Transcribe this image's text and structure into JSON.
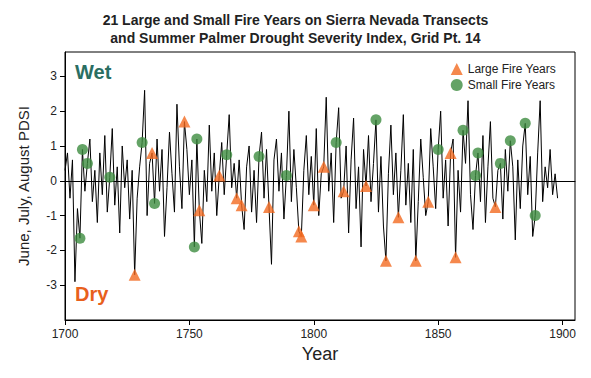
{
  "chart_data": {
    "type": "line",
    "title": "21 Large and Small Fire Years on Sierra Nevada Transects\nand Summer Palmer Drought Severity Index, Grid Pt. 14",
    "x_label": "Year",
    "y_label": "June, July, August PDSI",
    "color": "#000000",
    "x": [
      1700,
      1701,
      1702,
      1703,
      1704,
      1705,
      1706,
      1707,
      1708,
      1709,
      1710,
      1711,
      1712,
      1713,
      1714,
      1715,
      1716,
      1717,
      1718,
      1719,
      1720,
      1721,
      1722,
      1723,
      1724,
      1725,
      1726,
      1727,
      1728,
      1729,
      1730,
      1731,
      1732,
      1733,
      1734,
      1735,
      1736,
      1737,
      1738,
      1739,
      1740,
      1741,
      1742,
      1743,
      1744,
      1745,
      1746,
      1747,
      1748,
      1749,
      1750,
      1751,
      1752,
      1753,
      1754,
      1755,
      1756,
      1757,
      1758,
      1759,
      1760,
      1761,
      1762,
      1763,
      1764,
      1765,
      1766,
      1767,
      1768,
      1769,
      1770,
      1771,
      1772,
      1773,
      1774,
      1775,
      1776,
      1777,
      1778,
      1779,
      1780,
      1781,
      1782,
      1783,
      1784,
      1785,
      1786,
      1787,
      1788,
      1789,
      1790,
      1791,
      1792,
      1793,
      1794,
      1795,
      1796,
      1797,
      1798,
      1799,
      1800,
      1801,
      1802,
      1803,
      1804,
      1805,
      1806,
      1807,
      1808,
      1809,
      1810,
      1811,
      1812,
      1813,
      1814,
      1815,
      1816,
      1817,
      1818,
      1819,
      1820,
      1821,
      1822,
      1823,
      1824,
      1825,
      1826,
      1827,
      1828,
      1829,
      1830,
      1831,
      1832,
      1833,
      1834,
      1835,
      1836,
      1837,
      1838,
      1839,
      1840,
      1841,
      1842,
      1843,
      1844,
      1845,
      1846,
      1847,
      1848,
      1849,
      1850,
      1851,
      1852,
      1853,
      1854,
      1855,
      1856,
      1857,
      1858,
      1859,
      1860,
      1861,
      1862,
      1863,
      1864,
      1865,
      1866,
      1867,
      1868,
      1869,
      1870,
      1871,
      1872,
      1873,
      1874,
      1875,
      1876,
      1877,
      1878,
      1879,
      1880,
      1881,
      1882,
      1883,
      1884,
      1885,
      1886,
      1887,
      1888,
      1889,
      1890,
      1891,
      1892,
      1893,
      1894,
      1895,
      1896,
      1897,
      1898
    ],
    "values": [
      0.3,
      0.8,
      -0.5,
      0.6,
      -2.9,
      -0.8,
      -1.65,
      0.9,
      -0.3,
      0.5,
      1.2,
      -0.6,
      0.3,
      -1.2,
      0.8,
      -0.4,
      1.3,
      -0.9,
      0.1,
      1.5,
      -0.7,
      0.4,
      -1.5,
      1.0,
      -0.2,
      0.6,
      -1.1,
      0.3,
      -2.7,
      -0.5,
      0.4,
      1.1,
      2.6,
      -1.0,
      0.5,
      0.8,
      -0.65,
      1.2,
      -0.3,
      0.9,
      -1.6,
      -0.2,
      1.4,
      0.2,
      -0.9,
      2.2,
      0.4,
      -0.8,
      1.7,
      0.9,
      -0.4,
      0.6,
      -1.9,
      1.2,
      -0.85,
      -1.8,
      0.3,
      -0.6,
      1.6,
      -0.3,
      0.8,
      -1.0,
      0.15,
      1.1,
      -0.4,
      0.75,
      1.9,
      -0.2,
      0.5,
      -0.5,
      0.6,
      -0.7,
      -1.4,
      0.4,
      1.0,
      -0.9,
      0.3,
      -1.2,
      0.7,
      1.4,
      -0.5,
      0.9,
      -0.75,
      -2.4,
      0.6,
      1.2,
      -0.3,
      0.8,
      -1.1,
      0.15,
      2.0,
      -0.6,
      0.9,
      -0.2,
      -1.45,
      -1.6,
      0.3,
      1.3,
      -0.4,
      0.7,
      -0.7,
      1.5,
      -1.0,
      0.2,
      0.4,
      2.4,
      -0.3,
      0.8,
      -1.2,
      1.1,
      2.1,
      -0.5,
      -0.3,
      1.0,
      -1.5,
      0.6,
      1.8,
      -0.8,
      0.4,
      -1.9,
      0.9,
      -0.15,
      1.3,
      -0.6,
      0.5,
      1.75,
      -0.9,
      0.7,
      -1.3,
      -2.3,
      0.2,
      1.6,
      -0.4,
      0.8,
      -1.05,
      0.3,
      1.9,
      -0.7,
      0.5,
      -1.2,
      0.9,
      -2.3,
      -0.6,
      1.2,
      0.1,
      -1.0,
      -0.6,
      1.5,
      0.4,
      -0.8,
      0.9,
      2.0,
      -0.5,
      0.6,
      -1.3,
      0.8,
      1.2,
      -2.2,
      0.3,
      -0.9,
      1.45,
      0.5,
      2.3,
      -0.4,
      -1.4,
      0.15,
      0.8,
      -0.6,
      1.3,
      -1.2,
      0.4,
      1.7,
      -0.5,
      -0.75,
      0.3,
      0.5,
      -1.1,
      0.9,
      -0.3,
      1.15,
      0.4,
      -1.7,
      0.6,
      -0.8,
      1.0,
      1.65,
      -0.4,
      0.7,
      -1.6,
      -1.0,
      0.8,
      2.3,
      -0.6,
      0.4,
      -0.2,
      0.9,
      -0.4,
      0.2,
      -0.5
    ],
    "series": [
      {
        "name": "Large Fire Years",
        "type": "scatter",
        "color": "#f26a21",
        "marker": "triangle",
        "x": [
          1728,
          1735,
          1748,
          1754,
          1762,
          1769,
          1771,
          1782,
          1794,
          1795,
          1800,
          1804,
          1812,
          1821,
          1829,
          1834,
          1841,
          1846,
          1855,
          1857,
          1873
        ],
        "values": [
          -2.7,
          0.8,
          1.7,
          -0.85,
          0.15,
          -0.5,
          -0.7,
          -0.75,
          -1.45,
          -1.6,
          -0.7,
          0.4,
          -0.3,
          -0.15,
          -2.3,
          -1.05,
          -2.3,
          -0.6,
          0.8,
          -2.2,
          -0.75
        ]
      },
      {
        "name": "Small Fire Years",
        "type": "scatter",
        "color": "#3d8c40",
        "marker": "circle",
        "x": [
          1706,
          1707,
          1709,
          1718,
          1731,
          1736,
          1752,
          1753,
          1765,
          1778,
          1789,
          1809,
          1825,
          1850,
          1860,
          1865,
          1866,
          1875,
          1879,
          1885,
          1889
        ],
        "values": [
          -1.65,
          0.9,
          0.5,
          0.1,
          1.1,
          -0.65,
          -1.9,
          1.2,
          0.75,
          0.7,
          0.15,
          1.1,
          1.75,
          0.9,
          1.45,
          0.15,
          0.8,
          0.5,
          1.15,
          1.65,
          -1.0
        ]
      }
    ],
    "annotations": [
      {
        "text": "Wet",
        "color": "#2a6e62"
      },
      {
        "text": "Dry",
        "color": "#e8601c"
      }
    ],
    "xlim": [
      1700,
      1905
    ],
    "xticks": [
      1700,
      1750,
      1800,
      1850,
      1900
    ],
    "ylim": [
      -4,
      3.7
    ],
    "yticks": [
      -3,
      -2,
      -1,
      0,
      1,
      2,
      3
    ],
    "legend": "upper right",
    "grid": false
  }
}
